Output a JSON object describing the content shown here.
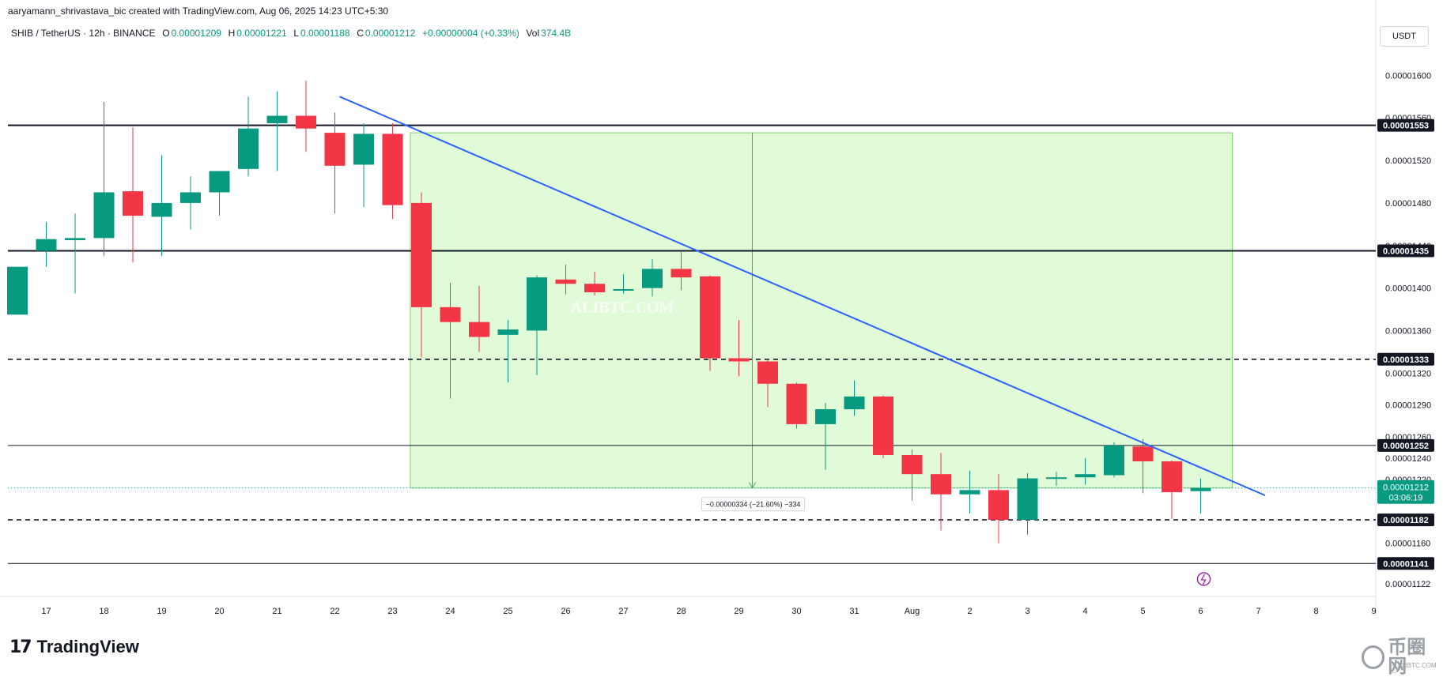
{
  "header": {
    "caption": "aaryamann_shrivastava_bic created with TradingView.com, Aug 06, 2025 14:23 UTC+5:30",
    "symbol": "SHIB / TetherUS · 12h · BINANCE",
    "open_label": "O",
    "open": "0.00001209",
    "high_label": "H",
    "high": "0.00001221",
    "low_label": "L",
    "low": "0.00001188",
    "close_label": "C",
    "close": "0.00001212",
    "change": "+0.00000004 (+0.33%)",
    "vol_label": "Vol",
    "vol": "374.4B",
    "unit": "USDT"
  },
  "footer": {
    "logo_mark": "17",
    "logo_text": "TradingView",
    "corner_mark": "币圈网",
    "corner_sub": "— ALIBTC.COM —"
  },
  "colors": {
    "up": "#089981",
    "down": "#f23645",
    "trendline": "#2962ff",
    "zone_fill": "#c8f5b8",
    "zone_stroke": "#7ed36b"
  },
  "chart_data": {
    "type": "candlestick",
    "interval": "12h",
    "ylim": [
      1.11e-05,
      1.63e-05
    ],
    "y_ticks": [
      "0.00001600",
      "0.00001560",
      "0.00001520",
      "0.00001480",
      "0.00001440",
      "0.00001400",
      "0.00001360",
      "0.00001320",
      "0.00001290",
      "0.00001260",
      "0.00001240",
      "0.00001220",
      "0.00001160",
      "0.00001122"
    ],
    "x_ticks": [
      "17",
      "18",
      "19",
      "20",
      "21",
      "22",
      "23",
      "24",
      "25",
      "26",
      "27",
      "28",
      "29",
      "30",
      "31",
      "Aug",
      "2",
      "3",
      "4",
      "5",
      "6",
      "7",
      "8",
      "9"
    ],
    "candles": [
      {
        "o": 1.375e-05,
        "h": 1.42e-05,
        "l": 1.375e-05,
        "c": 1.42e-05
      },
      {
        "o": 1.435e-05,
        "h": 1.462e-05,
        "l": 1.42e-05,
        "c": 1.446e-05
      },
      {
        "o": 1.445e-05,
        "h": 1.47e-05,
        "l": 1.395e-05,
        "c": 1.447e-05
      },
      {
        "o": 1.447e-05,
        "h": 1.575e-05,
        "l": 1.43e-05,
        "c": 1.49e-05
      },
      {
        "o": 1.491e-05,
        "h": 1.551e-05,
        "l": 1.424e-05,
        "c": 1.468e-05
      },
      {
        "o": 1.467e-05,
        "h": 1.525e-05,
        "l": 1.43e-05,
        "c": 1.48e-05
      },
      {
        "o": 1.48e-05,
        "h": 1.505e-05,
        "l": 1.455e-05,
        "c": 1.49e-05
      },
      {
        "o": 1.49e-05,
        "h": 1.51e-05,
        "l": 1.468e-05,
        "c": 1.51e-05
      },
      {
        "o": 1.512e-05,
        "h": 1.58e-05,
        "l": 1.505e-05,
        "c": 1.55e-05
      },
      {
        "o": 1.555e-05,
        "h": 1.585e-05,
        "l": 1.51e-05,
        "c": 1.562e-05
      },
      {
        "o": 1.562e-05,
        "h": 1.595e-05,
        "l": 1.528e-05,
        "c": 1.55e-05
      },
      {
        "o": 1.546e-05,
        "h": 1.565e-05,
        "l": 1.47e-05,
        "c": 1.515e-05
      },
      {
        "o": 1.516e-05,
        "h": 1.555e-05,
        "l": 1.476e-05,
        "c": 1.545e-05
      },
      {
        "o": 1.545e-05,
        "h": 1.555e-05,
        "l": 1.465e-05,
        "c": 1.478e-05
      },
      {
        "o": 1.48e-05,
        "h": 1.49e-05,
        "l": 1.335e-05,
        "c": 1.382e-05
      },
      {
        "o": 1.382e-05,
        "h": 1.405e-05,
        "l": 1.296e-05,
        "c": 1.368e-05
      },
      {
        "o": 1.368e-05,
        "h": 1.402e-05,
        "l": 1.34e-05,
        "c": 1.354e-05
      },
      {
        "o": 1.356e-05,
        "h": 1.37e-05,
        "l": 1.311e-05,
        "c": 1.361e-05
      },
      {
        "o": 1.36e-05,
        "h": 1.412e-05,
        "l": 1.318e-05,
        "c": 1.41e-05
      },
      {
        "o": 1.408e-05,
        "h": 1.422e-05,
        "l": 1.394e-05,
        "c": 1.404e-05
      },
      {
        "o": 1.404e-05,
        "h": 1.415e-05,
        "l": 1.393e-05,
        "c": 1.396e-05
      },
      {
        "o": 1.398e-05,
        "h": 1.413e-05,
        "l": 1.395e-05,
        "c": 1.399e-05
      },
      {
        "o": 1.4e-05,
        "h": 1.427e-05,
        "l": 1.392e-05,
        "c": 1.418e-05
      },
      {
        "o": 1.418e-05,
        "h": 1.435e-05,
        "l": 1.398e-05,
        "c": 1.41e-05
      },
      {
        "o": 1.411e-05,
        "h": 1.412e-05,
        "l": 1.322e-05,
        "c": 1.334e-05
      },
      {
        "o": 1.334e-05,
        "h": 1.37e-05,
        "l": 1.317e-05,
        "c": 1.331e-05
      },
      {
        "o": 1.331e-05,
        "h": 1.333e-05,
        "l": 1.288e-05,
        "c": 1.31e-05
      },
      {
        "o": 1.31e-05,
        "h": 1.311e-05,
        "l": 1.268e-05,
        "c": 1.272e-05
      },
      {
        "o": 1.272e-05,
        "h": 1.292e-05,
        "l": 1.229e-05,
        "c": 1.286e-05
      },
      {
        "o": 1.286e-05,
        "h": 1.313e-05,
        "l": 1.28e-05,
        "c": 1.298e-05
      },
      {
        "o": 1.298e-05,
        "h": 1.299e-05,
        "l": 1.24e-05,
        "c": 1.243e-05
      },
      {
        "o": 1.243e-05,
        "h": 1.248e-05,
        "l": 1.2e-05,
        "c": 1.225e-05
      },
      {
        "o": 1.225e-05,
        "h": 1.245e-05,
        "l": 1.172e-05,
        "c": 1.206e-05
      },
      {
        "o": 1.206e-05,
        "h": 1.228e-05,
        "l": 1.188e-05,
        "c": 1.21e-05
      },
      {
        "o": 1.21e-05,
        "h": 1.225e-05,
        "l": 1.16e-05,
        "c": 1.182e-05
      },
      {
        "o": 1.182e-05,
        "h": 1.226e-05,
        "l": 1.168e-05,
        "c": 1.221e-05
      },
      {
        "o": 1.221e-05,
        "h": 1.227e-05,
        "l": 1.214e-05,
        "c": 1.222e-05
      },
      {
        "o": 1.222e-05,
        "h": 1.24e-05,
        "l": 1.215e-05,
        "c": 1.225e-05
      },
      {
        "o": 1.224e-05,
        "h": 1.255e-05,
        "l": 1.222e-05,
        "c": 1.252e-05
      },
      {
        "o": 1.251e-05,
        "h": 1.258e-05,
        "l": 1.207e-05,
        "c": 1.237e-05
      },
      {
        "o": 1.237e-05,
        "h": 1.238e-05,
        "l": 1.183e-05,
        "c": 1.208e-05
      },
      {
        "o": 1.209e-05,
        "h": 1.221e-05,
        "l": 1.188e-05,
        "c": 1.212e-05
      }
    ],
    "levels": [
      {
        "price": 1.553e-05,
        "label": "0.00001553",
        "style": "solid"
      },
      {
        "price": 1.435e-05,
        "label": "0.00001435",
        "style": "solid"
      },
      {
        "price": 1.333e-05,
        "label": "0.00001333",
        "style": "dashed"
      },
      {
        "price": 1.252e-05,
        "label": "0.00001252",
        "style": "solid-thin"
      },
      {
        "price": 1.182e-05,
        "label": "0.00001182",
        "style": "dashed"
      },
      {
        "price": 1.141e-05,
        "label": "0.00001141",
        "style": "solid-thin"
      }
    ],
    "trendline": {
      "from_price": 1.58e-05,
      "to_price": 1.205e-05
    },
    "measure_zone": {
      "top": 1.546e-05,
      "bottom": 1.212e-05
    },
    "measure_label": "−0.00000334 (−21.60%) −334",
    "current_price": {
      "label": "0.00001212",
      "countdown": "03:06:19"
    },
    "watermark": "ALIBTC.COM"
  }
}
